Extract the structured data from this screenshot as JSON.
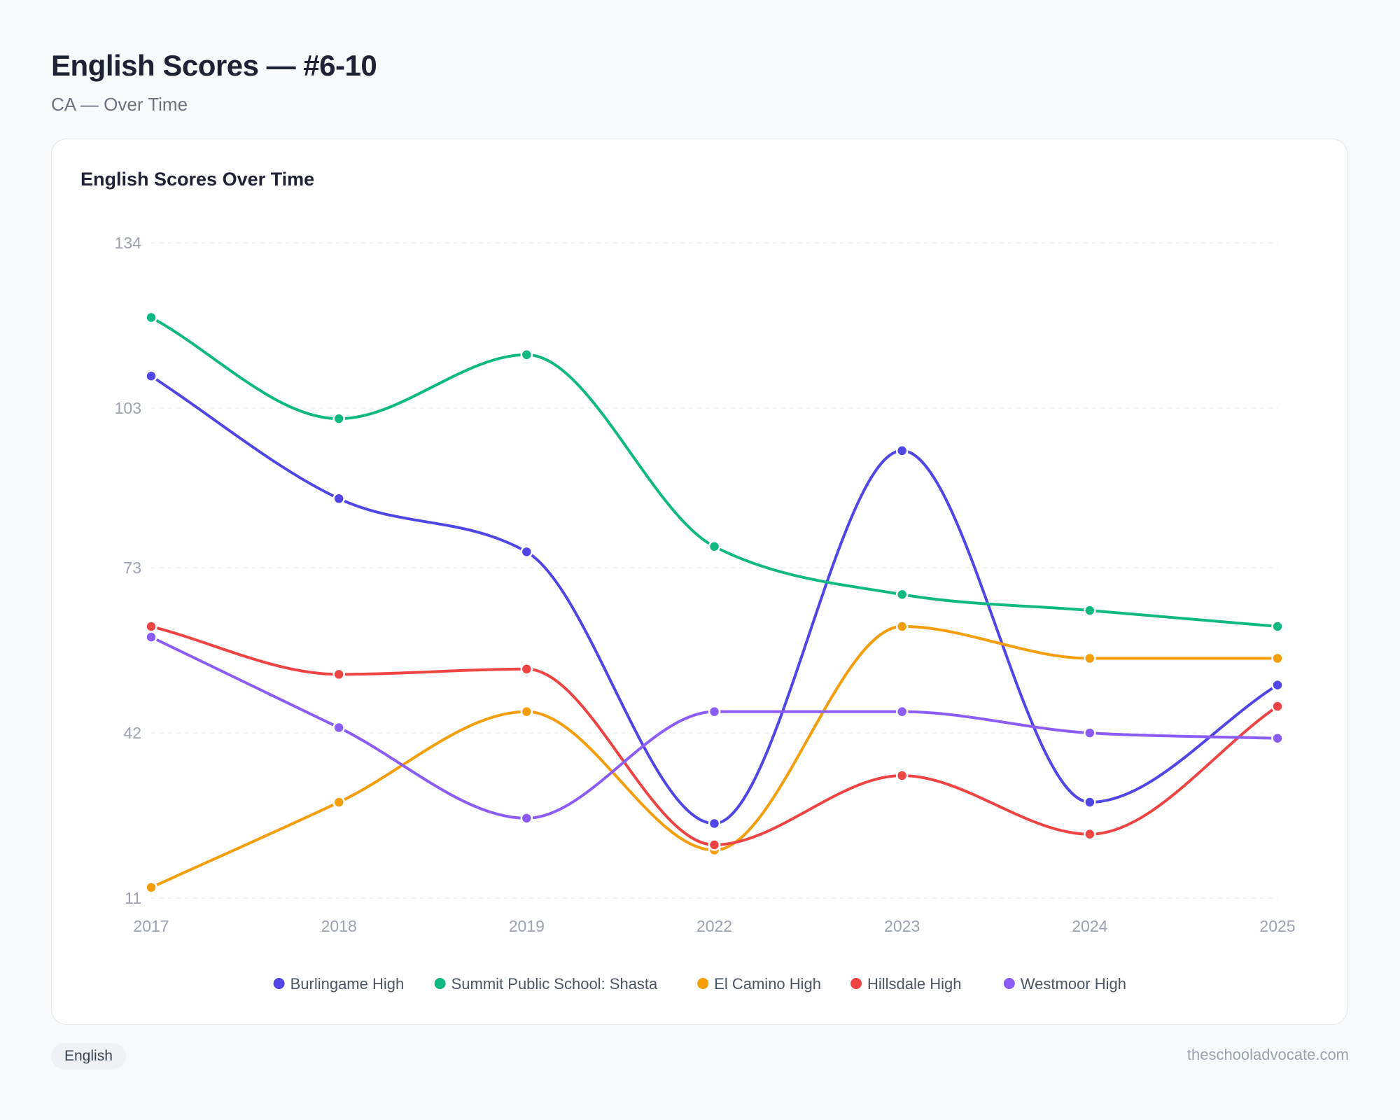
{
  "header": {
    "title": "English Scores — #6-10",
    "subtitle": "CA — Over Time"
  },
  "card": {
    "title": "English Scores Over Time"
  },
  "footer": {
    "tag": "English",
    "site": "theschooladvocate.com"
  },
  "chart_data": {
    "type": "line",
    "title": "English Scores Over Time",
    "xlabel": "",
    "ylabel": "",
    "categories": [
      "2017",
      "2018",
      "2019",
      "2022",
      "2023",
      "2024",
      "2025"
    ],
    "ylim": [
      11,
      134
    ],
    "yticks": [
      11,
      42,
      73,
      103,
      134
    ],
    "grid": true,
    "curve": "smooth",
    "legend": "bottom-center",
    "series": [
      {
        "name": "Burlingame High",
        "color": "#4f46e5",
        "values": [
          109,
          86,
          76,
          25,
          95,
          29,
          51
        ]
      },
      {
        "name": "Summit Public School: Shasta",
        "color": "#10b981",
        "values": [
          120,
          101,
          113,
          77,
          68,
          65,
          62
        ]
      },
      {
        "name": "El Camino High",
        "color": "#f59e0b",
        "values": [
          13,
          29,
          46,
          20,
          62,
          56,
          56
        ]
      },
      {
        "name": "Hillsdale High",
        "color": "#ef4444",
        "values": [
          62,
          53,
          54,
          21,
          34,
          23,
          47
        ]
      },
      {
        "name": "Westmoor High",
        "color": "#8b5cf6",
        "values": [
          60,
          43,
          26,
          46,
          46,
          42,
          41
        ]
      }
    ]
  }
}
